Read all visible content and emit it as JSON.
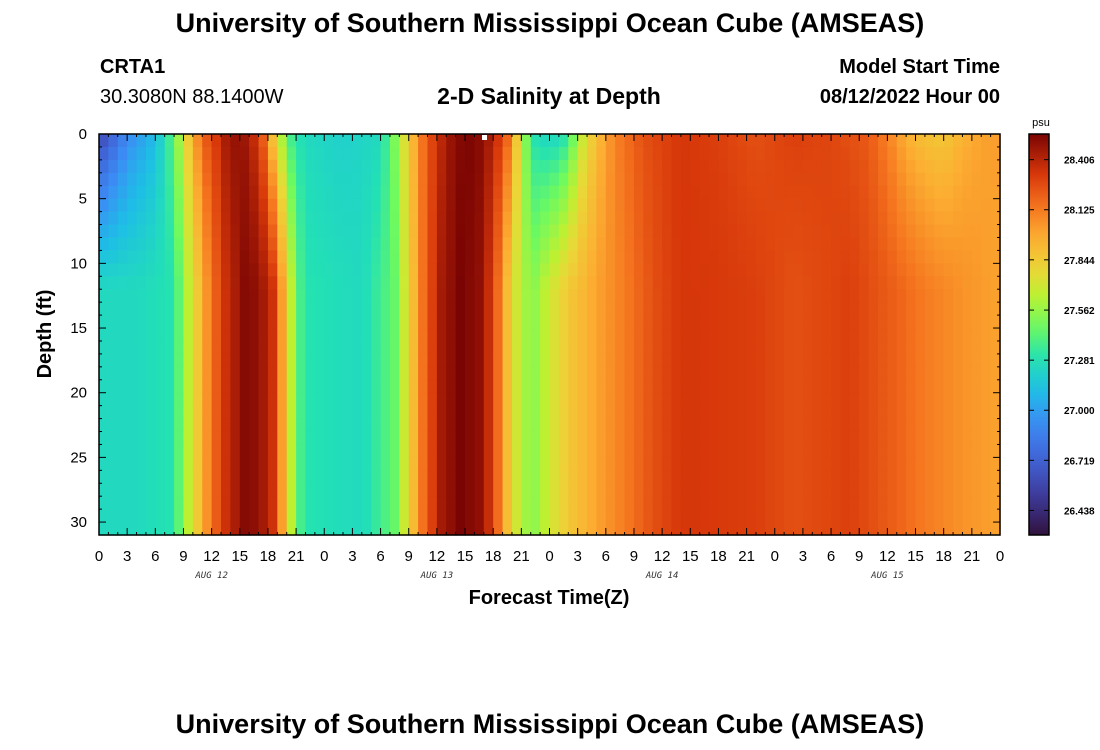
{
  "header": {
    "title": "University of Southern Mississippi Ocean Cube (AMSEAS)",
    "station": "CRTA1",
    "coords": "30.3080N  88.1400W",
    "plot_title": "2-D Salinity at Depth",
    "model_start_label": "Model Start Time",
    "model_start_value": "08/12/2022 Hour 00"
  },
  "footer": {
    "title": "University of Southern Mississippi Ocean Cube (AMSEAS)"
  },
  "chart_data": {
    "type": "heatmap",
    "title": "2-D Salinity at Depth",
    "xlabel": "Forecast Time(Z)",
    "ylabel": "Depth (ft)",
    "x_tick_labels": [
      "0",
      "3",
      "6",
      "9",
      "12",
      "15",
      "18",
      "21",
      "0",
      "3",
      "6",
      "9",
      "12",
      "15",
      "18",
      "21",
      "0",
      "3",
      "6",
      "9",
      "12",
      "15",
      "18",
      "21",
      "0",
      "3",
      "6",
      "9",
      "12",
      "15",
      "18",
      "21",
      "0"
    ],
    "x_range_hours": [
      0,
      96
    ],
    "date_labels": [
      {
        "label": "AUG 12",
        "hour": 12
      },
      {
        "label": "AUG 13",
        "hour": 36
      },
      {
        "label": "AUG 14",
        "hour": 60
      },
      {
        "label": "AUG 15",
        "hour": 84
      }
    ],
    "y_tick_labels": [
      "0",
      "5",
      "10",
      "15",
      "20",
      "25",
      "30"
    ],
    "y_ticks": [
      0,
      5,
      10,
      15,
      20,
      25,
      30
    ],
    "ylim": [
      0,
      31
    ],
    "colorbar": {
      "unit": "psu",
      "min": 26.3,
      "max": 28.55,
      "tick_labels": [
        "28.406",
        "28.125",
        "27.844",
        "27.562",
        "27.281",
        "27.000",
        "26.719",
        "26.438"
      ],
      "tick_values": [
        28.406,
        28.125,
        27.844,
        27.562,
        27.281,
        27.0,
        26.719,
        26.438
      ]
    },
    "surface_profile_psu": [
      [
        0,
        26.55
      ],
      [
        3,
        26.9
      ],
      [
        6,
        27.1
      ],
      [
        8,
        27.45
      ],
      [
        9.5,
        27.85
      ],
      [
        11,
        28.2
      ],
      [
        12.5,
        28.33
      ],
      [
        14,
        28.5
      ],
      [
        16,
        28.45
      ],
      [
        17.5,
        28.2
      ],
      [
        19,
        27.7
      ],
      [
        20.5,
        27.35
      ],
      [
        22,
        27.25
      ],
      [
        26,
        27.2
      ],
      [
        30,
        27.25
      ],
      [
        31.5,
        27.5
      ],
      [
        33,
        27.85
      ],
      [
        34.5,
        28.15
      ],
      [
        36,
        28.35
      ],
      [
        38,
        28.52
      ],
      [
        40,
        28.55
      ],
      [
        42,
        28.42
      ],
      [
        43.5,
        28.2
      ],
      [
        45,
        27.7
      ],
      [
        46,
        27.3
      ],
      [
        48,
        27.2
      ],
      [
        50,
        27.3
      ],
      [
        51,
        27.6
      ],
      [
        53,
        27.9
      ],
      [
        55,
        28.1
      ],
      [
        58,
        28.25
      ],
      [
        62,
        28.33
      ],
      [
        66,
        28.3
      ],
      [
        70,
        28.25
      ],
      [
        74,
        28.3
      ],
      [
        78,
        28.28
      ],
      [
        82,
        28.22
      ],
      [
        84,
        28.1
      ],
      [
        86,
        27.95
      ],
      [
        88,
        27.88
      ],
      [
        90,
        27.85
      ],
      [
        92,
        27.95
      ],
      [
        94,
        28.0
      ],
      [
        96,
        28.02
      ]
    ],
    "bottom_profile_psu": [
      [
        0,
        27.25
      ],
      [
        4,
        27.25
      ],
      [
        8,
        27.3
      ],
      [
        9,
        27.55
      ],
      [
        10.5,
        27.85
      ],
      [
        12,
        28.15
      ],
      [
        13.5,
        28.35
      ],
      [
        15.5,
        28.52
      ],
      [
        17,
        28.5
      ],
      [
        18.5,
        28.35
      ],
      [
        20,
        27.85
      ],
      [
        21,
        27.45
      ],
      [
        22,
        27.3
      ],
      [
        28,
        27.25
      ],
      [
        31.5,
        27.45
      ],
      [
        33,
        27.8
      ],
      [
        34.5,
        28.15
      ],
      [
        36.5,
        28.45
      ],
      [
        38.5,
        28.55
      ],
      [
        40.5,
        28.5
      ],
      [
        42,
        28.3
      ],
      [
        43.5,
        27.9
      ],
      [
        45,
        27.6
      ],
      [
        46.5,
        27.55
      ],
      [
        48,
        27.7
      ],
      [
        50,
        27.85
      ],
      [
        53,
        28.0
      ],
      [
        56,
        28.12
      ],
      [
        59,
        28.25
      ],
      [
        62,
        28.33
      ],
      [
        66,
        28.32
      ],
      [
        70,
        28.3
      ],
      [
        74,
        28.25
      ],
      [
        78,
        28.28
      ],
      [
        80,
        28.3
      ],
      [
        84,
        28.22
      ],
      [
        88,
        28.12
      ],
      [
        92,
        28.05
      ],
      [
        96,
        28.0
      ]
    ]
  }
}
